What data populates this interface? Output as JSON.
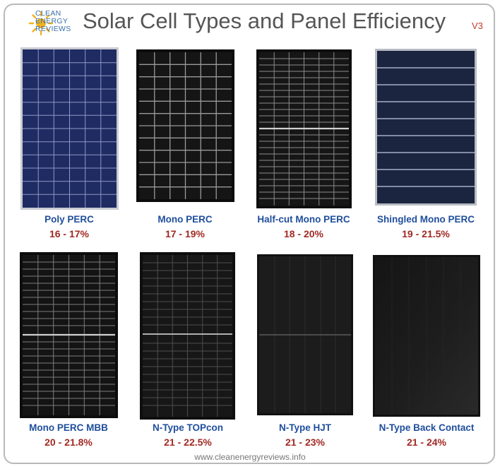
{
  "logo": {
    "line1": "CLEAN",
    "line2": "ENERGY",
    "line3": "REVIEWS",
    "icon": "sun-icon"
  },
  "title": "Solar Cell Types and Panel Efficiency",
  "version": "V3",
  "panels": [
    {
      "name": "Poly PERC",
      "efficiency": "16 - 17%",
      "color": "#1f2b63"
    },
    {
      "name": "Mono PERC",
      "efficiency": "17 - 19%",
      "color": "#111111"
    },
    {
      "name": "Half-cut Mono PERC",
      "efficiency": "18 - 20%",
      "color": "#141414"
    },
    {
      "name": "Shingled Mono PERC",
      "efficiency": "19 - 21.5%",
      "color": "#1c2540"
    },
    {
      "name": "Mono PERC MBB",
      "efficiency": "20 - 21.8%",
      "color": "#111111"
    },
    {
      "name": "N-Type TOPcon",
      "efficiency": "21 - 22.5%",
      "color": "#151515"
    },
    {
      "name": "N-Type HJT",
      "efficiency": "21 - 23%",
      "color": "#1a1a1a"
    },
    {
      "name": "N-Type Back Contact",
      "efficiency": "21 - 24%",
      "color": "#1b1b1b"
    }
  ],
  "footer": "www.cleanenergyreviews.info"
}
